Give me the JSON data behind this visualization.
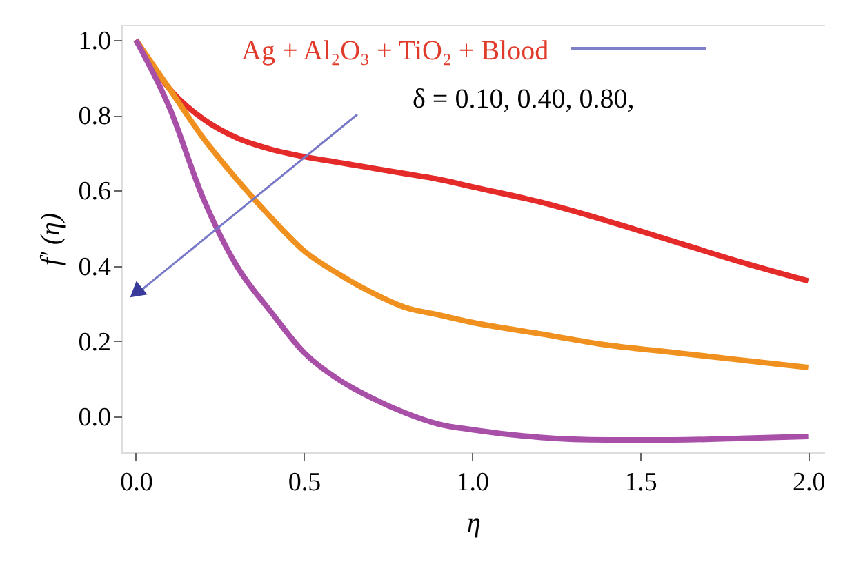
{
  "chart_data": {
    "type": "line",
    "xlabel": "η",
    "ylabel": "f′ (η)",
    "annotations": [
      "Ag + Al₂O₃ + TiO₂ + Blood",
      "δ = 0.10, 0.40, 0.80,"
    ],
    "xlim": [
      -0.043,
      2.05
    ],
    "ylim": [
      -0.095,
      1.04
    ],
    "xticks": [
      {
        "value": 0,
        "label": "0.0"
      },
      0.5,
      {
        "value": 1,
        "label": "1.0"
      },
      1.5,
      {
        "value": 2,
        "label": "2.0"
      }
    ],
    "yticks": [
      {
        "value": 0,
        "label": "0.0"
      },
      0.2,
      0.4,
      0.6,
      0.8,
      {
        "value": 1,
        "label": "1.0"
      }
    ],
    "grid": false,
    "legend": false,
    "line_style": "solid",
    "marker": "none",
    "x": [
      0,
      0.1,
      0.2,
      0.3,
      0.4,
      0.5,
      0.6,
      0.7,
      0.8,
      0.9,
      1.0,
      1.2,
      1.4,
      1.6,
      1.8,
      2.0
    ],
    "series": [
      {
        "color": "#e52a2a",
        "values": [
          1.0,
          0.87,
          0.79,
          0.74,
          0.71,
          0.69,
          0.675,
          0.66,
          0.645,
          0.63,
          0.61,
          0.57,
          0.52,
          0.465,
          0.41,
          0.36
        ]
      },
      {
        "color": "#f0901e",
        "values": [
          1.0,
          0.87,
          0.74,
          0.63,
          0.53,
          0.44,
          0.38,
          0.33,
          0.29,
          0.27,
          0.25,
          0.22,
          0.19,
          0.17,
          0.15,
          0.13
        ]
      },
      {
        "color": "#a850a8",
        "values": [
          1.0,
          0.82,
          0.58,
          0.4,
          0.28,
          0.17,
          0.1,
          0.05,
          0.01,
          -0.02,
          -0.035,
          -0.055,
          -0.062,
          -0.062,
          -0.058,
          -0.053
        ]
      }
    ]
  }
}
